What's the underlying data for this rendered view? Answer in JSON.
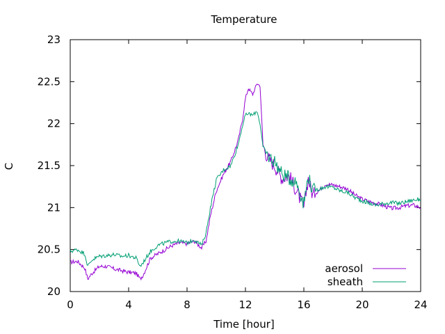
{
  "chart_data": {
    "type": "line",
    "title": "Temperature",
    "xlabel": "Time [hour]",
    "ylabel": "C",
    "xlim": [
      0,
      24
    ],
    "ylim": [
      20,
      23
    ],
    "xticks": [
      0,
      4,
      8,
      12,
      16,
      20,
      24
    ],
    "yticks": [
      20,
      20.5,
      21,
      21.5,
      22,
      22.5,
      23
    ],
    "ytick_labels": [
      "20",
      "20.5",
      "21",
      "21.5",
      "22",
      "22.5",
      "23"
    ],
    "grid": false,
    "legend_position": "bottom-right",
    "series": [
      {
        "name": "aerosol",
        "color": "#9400d3",
        "x": [
          0,
          0.5,
          1,
          1.2,
          1.5,
          2,
          2.5,
          3,
          3.5,
          4,
          4.5,
          4.8,
          5,
          5.5,
          6,
          6.5,
          7,
          7.5,
          8,
          8.5,
          9,
          9.3,
          9.6,
          10,
          10.5,
          11,
          11.5,
          11.8,
          12,
          12.2,
          12.5,
          12.8,
          13,
          13.2,
          13.5,
          14,
          14.5,
          15,
          15.5,
          16,
          16.3,
          16.6,
          17,
          17.5,
          18,
          18.5,
          19,
          19.5,
          20,
          20.5,
          21,
          21.5,
          22,
          22.5,
          23,
          23.5,
          24
        ],
        "y": [
          20.35,
          20.36,
          20.28,
          20.15,
          20.22,
          20.3,
          20.3,
          20.27,
          20.25,
          20.23,
          20.22,
          20.15,
          20.2,
          20.4,
          20.45,
          20.5,
          20.55,
          20.58,
          20.57,
          20.6,
          20.52,
          20.6,
          20.9,
          21.2,
          21.4,
          21.55,
          21.8,
          22.05,
          22.3,
          22.42,
          22.35,
          22.48,
          22.45,
          21.75,
          21.6,
          21.5,
          21.35,
          21.38,
          21.2,
          21.0,
          21.35,
          21.15,
          21.2,
          21.28,
          21.27,
          21.25,
          21.22,
          21.15,
          21.1,
          21.07,
          21.05,
          21.02,
          20.99,
          21.0,
          21.02,
          21.03,
          21.0
        ]
      },
      {
        "name": "sheath",
        "color": "#009e73",
        "x": [
          0,
          0.5,
          1,
          1.2,
          1.5,
          2,
          2.5,
          3,
          3.5,
          4,
          4.5,
          4.8,
          5,
          5.5,
          6,
          6.5,
          7,
          7.5,
          8,
          8.5,
          9,
          9.3,
          9.6,
          10,
          10.5,
          11,
          11.5,
          11.8,
          12,
          12.2,
          12.5,
          12.8,
          13,
          13.2,
          13.5,
          14,
          14.5,
          15,
          15.5,
          16,
          16.3,
          16.6,
          17,
          17.5,
          18,
          18.5,
          19,
          19.5,
          20,
          20.5,
          21,
          21.5,
          22,
          22.5,
          23,
          23.5,
          24
        ],
        "y": [
          20.48,
          20.5,
          20.45,
          20.3,
          20.38,
          20.42,
          20.43,
          20.44,
          20.42,
          20.43,
          20.4,
          20.3,
          20.35,
          20.48,
          20.55,
          20.58,
          20.6,
          20.6,
          20.58,
          20.62,
          20.55,
          20.7,
          21.0,
          21.33,
          21.45,
          21.5,
          21.75,
          21.98,
          22.1,
          22.12,
          22.1,
          22.15,
          22.0,
          21.72,
          21.62,
          21.55,
          21.4,
          21.35,
          21.3,
          21.05,
          21.38,
          21.2,
          21.22,
          21.25,
          21.24,
          21.2,
          21.18,
          21.12,
          21.08,
          21.05,
          21.03,
          21.05,
          21.06,
          21.05,
          21.07,
          21.09,
          21.1
        ]
      }
    ]
  }
}
